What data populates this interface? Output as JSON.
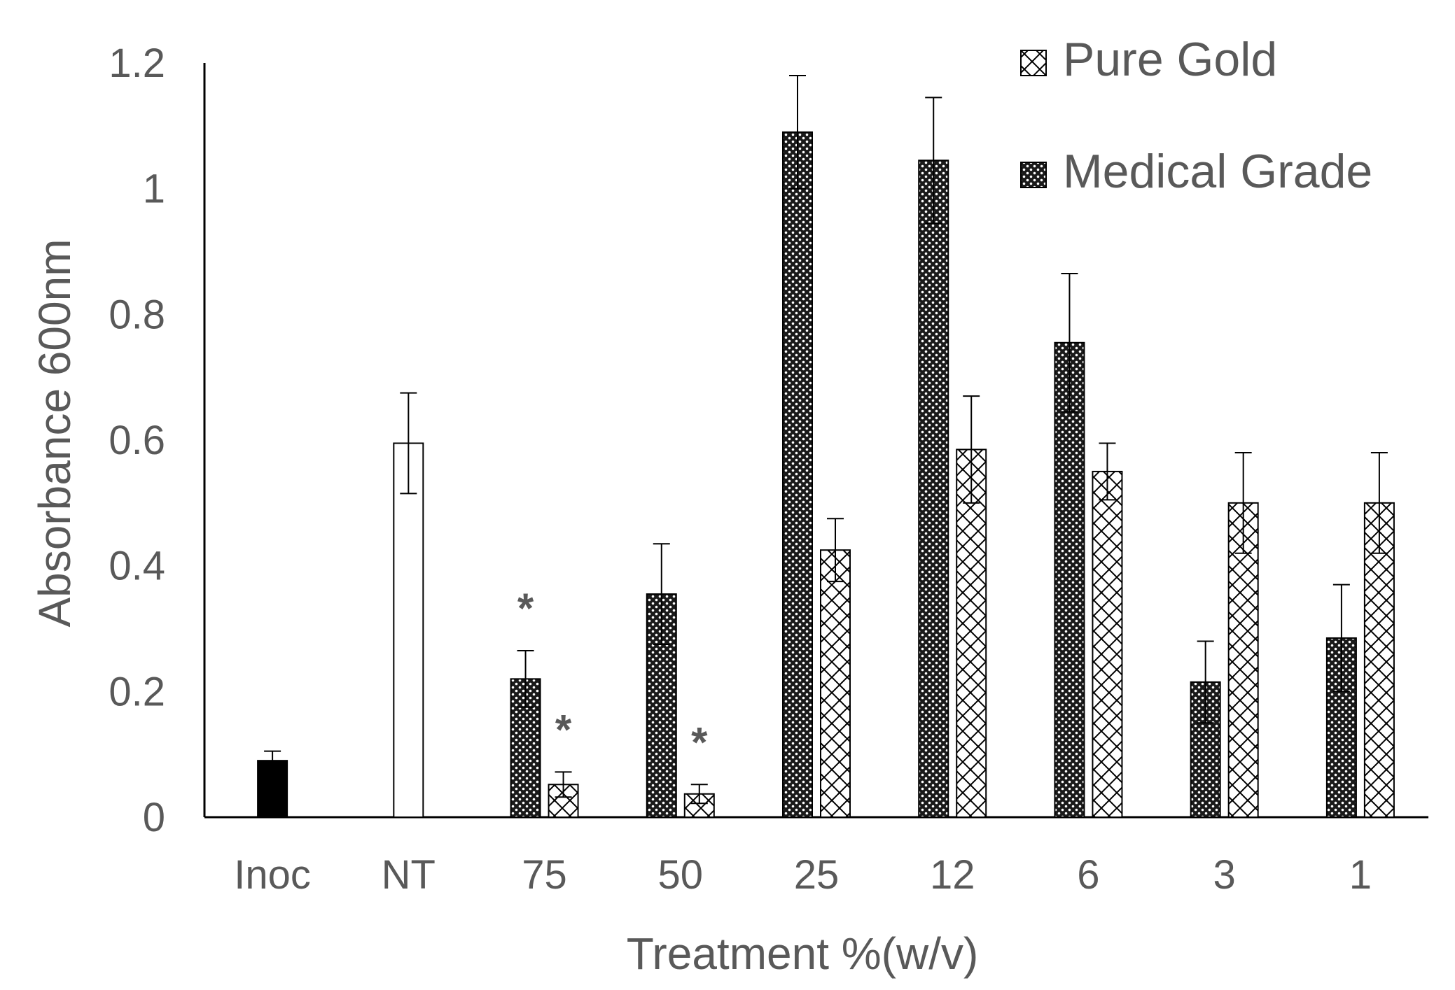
{
  "chart_data": {
    "type": "bar",
    "title": "",
    "xlabel": "Treatment %(w/v)",
    "ylabel": "Absorbance 600nm",
    "ylim": [
      0,
      1.2
    ],
    "y_ticks": [
      "0",
      "0.2",
      "0.4",
      "0.6",
      "0.8",
      "1",
      "1.2"
    ],
    "categories": [
      "Inoc",
      "NT",
      "75",
      "50",
      "25",
      "12",
      "6",
      "3",
      "1"
    ],
    "legend_position": "top-right",
    "grid": false,
    "controls": [
      {
        "category": "Inoc",
        "value": 0.09,
        "error": 0.015,
        "fill": "solid-black"
      },
      {
        "category": "NT",
        "value": 0.595,
        "error": 0.08,
        "fill": "white"
      }
    ],
    "series": [
      {
        "name": "Medical Grade",
        "pattern": "dotted-dark",
        "values": [
          null,
          null,
          0.22,
          0.355,
          1.09,
          1.045,
          0.755,
          0.215,
          0.285
        ],
        "errors": [
          null,
          null,
          0.045,
          0.08,
          0.09,
          0.1,
          0.11,
          0.065,
          0.085
        ],
        "significant": [
          false,
          false,
          true,
          false,
          false,
          false,
          false,
          false,
          false
        ]
      },
      {
        "name": "Pure Gold",
        "pattern": "cross-hatch",
        "values": [
          null,
          null,
          0.052,
          0.037,
          0.425,
          0.585,
          0.55,
          0.5,
          0.5
        ],
        "errors": [
          null,
          null,
          0.02,
          0.015,
          0.05,
          0.085,
          0.045,
          0.08,
          0.08
        ],
        "significant": [
          false,
          false,
          true,
          true,
          false,
          false,
          false,
          false,
          false
        ]
      }
    ],
    "annotations": {
      "significance_marker": "*"
    },
    "colors": {
      "axis": "#000000",
      "text": "#595959",
      "bar_stroke": "#000000",
      "control_fill": "#000000"
    }
  }
}
